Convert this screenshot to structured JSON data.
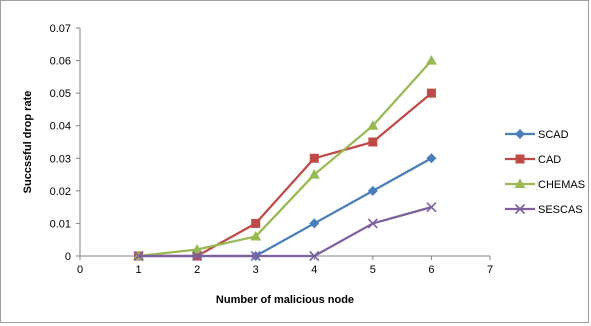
{
  "chart_data": {
    "type": "line",
    "xlabel": "Number of malicious node",
    "ylabel": "Succssful drop rate",
    "xlim": [
      0,
      7
    ],
    "ylim": [
      0,
      0.07
    ],
    "x_ticks": [
      "0",
      "1",
      "2",
      "3",
      "4",
      "5",
      "6",
      "7"
    ],
    "y_ticks": [
      "0",
      "0.01",
      "0.02",
      "0.03",
      "0.04",
      "0.05",
      "0.06",
      "0.07"
    ],
    "grid": "none",
    "legend_position": "right",
    "x": [
      1,
      2,
      3,
      4,
      5,
      6
    ],
    "series": [
      {
        "name": "SCAD",
        "color": "#4a7ebb",
        "marker": "diamond",
        "values": [
          0,
          0,
          0,
          0.01,
          0.02,
          0.03
        ]
      },
      {
        "name": "CAD",
        "color": "#be4b48",
        "marker": "square",
        "values": [
          0,
          0,
          0.01,
          0.03,
          0.035,
          0.05
        ]
      },
      {
        "name": "CHEMAS",
        "color": "#98b954",
        "marker": "triangle",
        "values": [
          0,
          0.002,
          0.006,
          0.025,
          0.04,
          0.06
        ]
      },
      {
        "name": "SESCAS",
        "color": "#7d60a0",
        "marker": "x",
        "values": [
          0,
          0,
          0,
          0,
          0.01,
          0.015
        ]
      }
    ]
  }
}
